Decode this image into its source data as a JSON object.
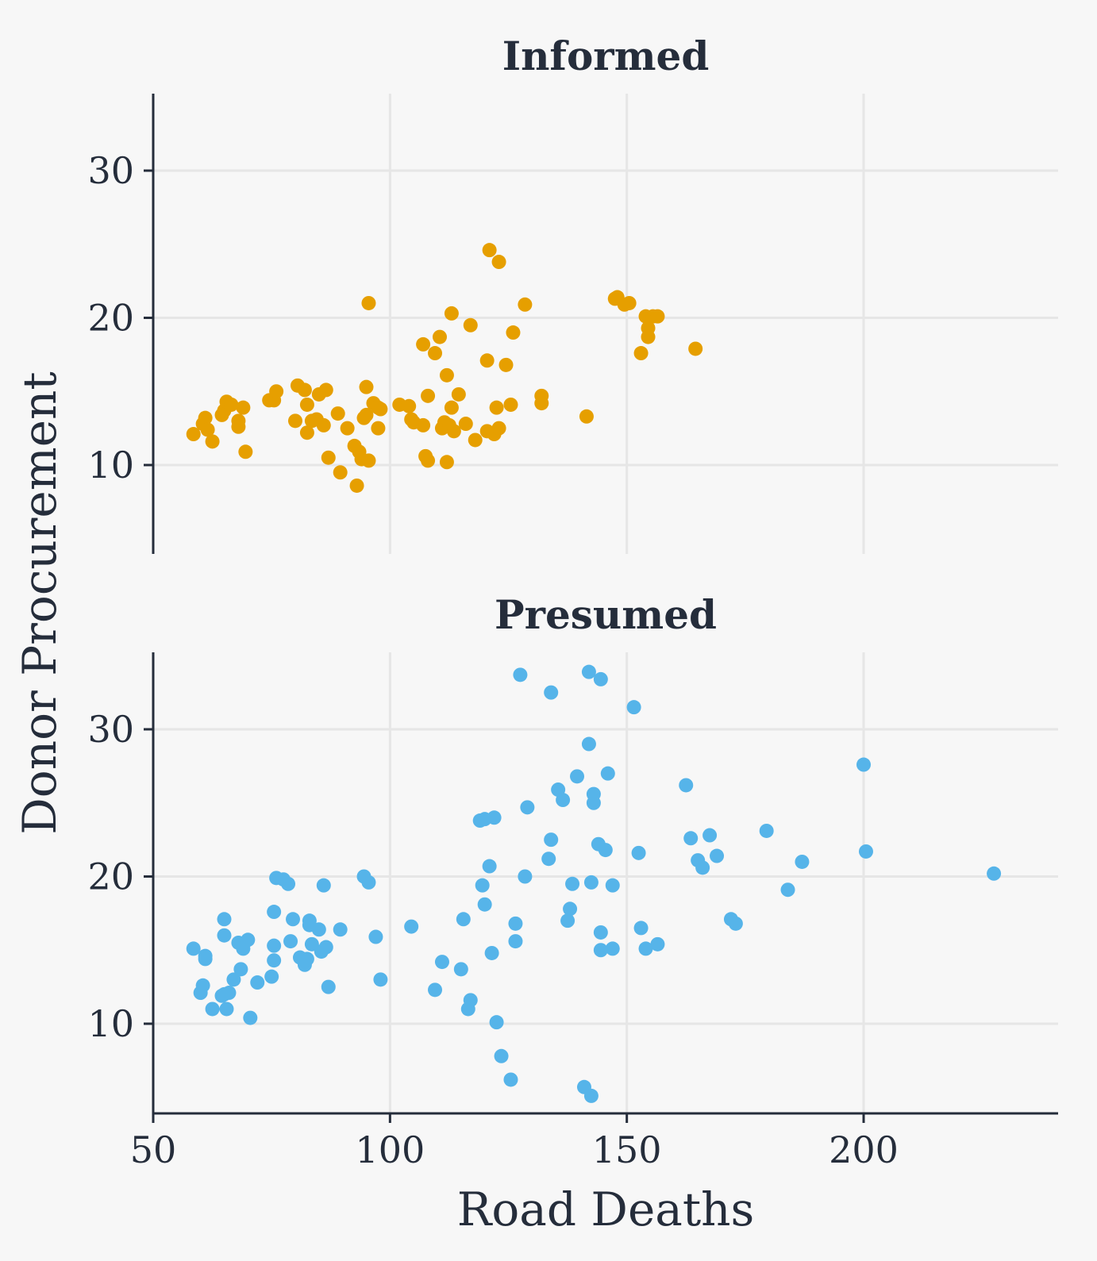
{
  "chart_data": {
    "type": "scatter",
    "xlabel": "Road Deaths",
    "ylabel": "Donor Procurement",
    "xlim": [
      50,
      240
    ],
    "ylim": [
      4,
      35
    ],
    "x_ticks": [
      50,
      100,
      150,
      200
    ],
    "y_ticks": [
      10,
      20,
      30
    ],
    "grid": true,
    "panels": [
      {
        "title": "Informed",
        "color": "#e69f00",
        "points": [
          [
            58.5,
            12.1
          ],
          [
            60.5,
            12.8
          ],
          [
            61,
            13.2
          ],
          [
            61.5,
            12.4
          ],
          [
            62.5,
            11.6
          ],
          [
            64.5,
            13.4
          ],
          [
            65,
            13.7
          ],
          [
            65.5,
            14.3
          ],
          [
            66.5,
            14.1
          ],
          [
            68,
            13.0
          ],
          [
            68,
            12.6
          ],
          [
            69,
            13.9
          ],
          [
            69.5,
            10.9
          ],
          [
            74.5,
            14.4
          ],
          [
            75.5,
            14.4
          ],
          [
            76,
            15.0
          ],
          [
            80,
            13.0
          ],
          [
            80.5,
            15.4
          ],
          [
            82,
            15.1
          ],
          [
            82.5,
            14.1
          ],
          [
            82.5,
            12.2
          ],
          [
            83.5,
            13.0
          ],
          [
            84.5,
            13.1
          ],
          [
            85,
            14.8
          ],
          [
            86,
            12.7
          ],
          [
            86.5,
            15.1
          ],
          [
            87,
            10.5
          ],
          [
            89,
            13.5
          ],
          [
            89.5,
            9.5
          ],
          [
            91,
            12.5
          ],
          [
            92.5,
            11.3
          ],
          [
            93,
            8.6
          ],
          [
            93.5,
            10.9
          ],
          [
            94,
            10.4
          ],
          [
            94.5,
            13.2
          ],
          [
            95,
            13.4
          ],
          [
            95,
            15.3
          ],
          [
            95.5,
            10.3
          ],
          [
            95.5,
            21.0
          ],
          [
            96.5,
            14.2
          ],
          [
            97.5,
            13.9
          ],
          [
            97.5,
            12.5
          ],
          [
            98,
            13.8
          ],
          [
            102,
            14.1
          ],
          [
            104,
            14.0
          ],
          [
            104.5,
            13.1
          ],
          [
            105,
            12.9
          ],
          [
            107,
            18.2
          ],
          [
            107,
            12.7
          ],
          [
            107.5,
            10.6
          ],
          [
            108,
            14.7
          ],
          [
            108,
            10.3
          ],
          [
            109.5,
            17.6
          ],
          [
            110.5,
            18.7
          ],
          [
            111,
            12.5
          ],
          [
            111.5,
            12.9
          ],
          [
            112,
            16.1
          ],
          [
            112,
            10.2
          ],
          [
            112.5,
            12.7
          ],
          [
            113,
            13.9
          ],
          [
            113,
            20.3
          ],
          [
            113.5,
            12.3
          ],
          [
            114.5,
            14.8
          ],
          [
            116,
            12.8
          ],
          [
            117,
            19.5
          ],
          [
            118,
            11.7
          ],
          [
            120.5,
            12.3
          ],
          [
            120.5,
            17.1
          ],
          [
            121,
            24.6
          ],
          [
            122,
            12.1
          ],
          [
            122.5,
            13.9
          ],
          [
            123,
            12.5
          ],
          [
            123,
            23.8
          ],
          [
            124.5,
            16.8
          ],
          [
            125.5,
            14.1
          ],
          [
            126,
            19.0
          ],
          [
            128.5,
            20.9
          ],
          [
            132,
            14.7
          ],
          [
            132,
            14.2
          ],
          [
            141.5,
            13.3
          ],
          [
            147.5,
            21.3
          ],
          [
            148,
            21.4
          ],
          [
            149.5,
            20.9
          ],
          [
            150.5,
            21.0
          ],
          [
            153,
            17.6
          ],
          [
            154,
            20.1
          ],
          [
            154.5,
            19.3
          ],
          [
            154.5,
            18.7
          ],
          [
            155.5,
            20.1
          ],
          [
            156.5,
            20.1
          ],
          [
            164.5,
            17.9
          ]
        ]
      },
      {
        "title": "Presumed",
        "color": "#56b4e9",
        "points": [
          [
            58.5,
            15.1
          ],
          [
            60,
            12.1
          ],
          [
            60.5,
            12.6
          ],
          [
            61,
            14.4
          ],
          [
            61,
            14.6
          ],
          [
            62.5,
            11.0
          ],
          [
            64.5,
            11.9
          ],
          [
            65,
            12.0
          ],
          [
            65,
            17.1
          ],
          [
            65,
            16.0
          ],
          [
            65.5,
            11.0
          ],
          [
            66,
            12.1
          ],
          [
            67,
            13.0
          ],
          [
            68,
            15.5
          ],
          [
            68.5,
            13.7
          ],
          [
            69,
            15.1
          ],
          [
            70,
            15.7
          ],
          [
            70.5,
            10.4
          ],
          [
            72,
            12.8
          ],
          [
            75,
            13.2
          ],
          [
            75.5,
            15.3
          ],
          [
            75.5,
            14.3
          ],
          [
            75.5,
            17.6
          ],
          [
            76,
            19.9
          ],
          [
            77.5,
            19.8
          ],
          [
            78.5,
            19.5
          ],
          [
            79,
            15.6
          ],
          [
            79.5,
            17.1
          ],
          [
            81,
            14.5
          ],
          [
            82,
            14.0
          ],
          [
            82.5,
            14.4
          ],
          [
            83,
            16.7
          ],
          [
            83,
            17.0
          ],
          [
            83.5,
            15.4
          ],
          [
            85,
            16.4
          ],
          [
            85.5,
            14.9
          ],
          [
            86,
            19.4
          ],
          [
            86.5,
            15.2
          ],
          [
            87,
            12.5
          ],
          [
            89.5,
            16.4
          ],
          [
            94.5,
            20.0
          ],
          [
            95.5,
            19.6
          ],
          [
            97,
            15.9
          ],
          [
            98,
            13.0
          ],
          [
            104.5,
            16.6
          ],
          [
            109.5,
            12.3
          ],
          [
            111,
            14.2
          ],
          [
            115,
            13.7
          ],
          [
            115.5,
            17.1
          ],
          [
            116.5,
            11.0
          ],
          [
            117,
            11.6
          ],
          [
            119,
            23.8
          ],
          [
            119.5,
            19.4
          ],
          [
            120,
            23.9
          ],
          [
            120,
            18.1
          ],
          [
            121,
            20.7
          ],
          [
            121.5,
            14.8
          ],
          [
            122,
            24.0
          ],
          [
            122.5,
            10.1
          ],
          [
            123.5,
            7.8
          ],
          [
            125.5,
            6.2
          ],
          [
            126.5,
            16.8
          ],
          [
            126.5,
            15.6
          ],
          [
            127.5,
            33.7
          ],
          [
            128.5,
            20.0
          ],
          [
            129,
            24.7
          ],
          [
            133.5,
            21.2
          ],
          [
            134,
            32.5
          ],
          [
            134,
            22.5
          ],
          [
            135.5,
            25.9
          ],
          [
            136.5,
            25.2
          ],
          [
            137.5,
            17.0
          ],
          [
            138,
            17.8
          ],
          [
            138.5,
            19.5
          ],
          [
            139.5,
            26.8
          ],
          [
            141,
            5.7
          ],
          [
            142,
            33.9
          ],
          [
            142,
            29.0
          ],
          [
            142.5,
            19.6
          ],
          [
            142.5,
            5.1
          ],
          [
            143,
            25.0
          ],
          [
            143,
            25.6
          ],
          [
            144,
            22.2
          ],
          [
            144.5,
            33.4
          ],
          [
            144.5,
            15.0
          ],
          [
            144.5,
            16.2
          ],
          [
            145.5,
            21.8
          ],
          [
            146,
            27.0
          ],
          [
            147,
            19.4
          ],
          [
            147,
            15.1
          ],
          [
            151.5,
            31.5
          ],
          [
            152.5,
            21.6
          ],
          [
            153,
            16.5
          ],
          [
            154,
            15.1
          ],
          [
            156.5,
            15.4
          ],
          [
            162.5,
            26.2
          ],
          [
            163.5,
            22.6
          ],
          [
            165,
            21.1
          ],
          [
            166,
            20.6
          ],
          [
            167.5,
            22.8
          ],
          [
            169,
            21.4
          ],
          [
            172,
            17.1
          ],
          [
            173,
            16.8
          ],
          [
            179.5,
            23.1
          ],
          [
            184,
            19.1
          ],
          [
            187,
            21.0
          ],
          [
            200,
            27.6
          ],
          [
            200.5,
            21.7
          ],
          [
            227.5,
            20.2
          ]
        ]
      }
    ]
  }
}
